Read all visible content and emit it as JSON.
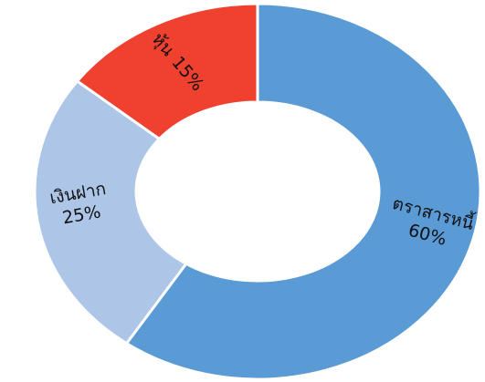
{
  "chart_data": {
    "type": "donut",
    "categories": [
      "ตราสารหนี้",
      "เงินฝาก",
      "หุ้น"
    ],
    "values": [
      60,
      25,
      15
    ],
    "value_labels": [
      "60%",
      "25%",
      "15%"
    ],
    "colors": [
      "#5b9bd5",
      "#adc5e7",
      "#f0402f"
    ]
  }
}
